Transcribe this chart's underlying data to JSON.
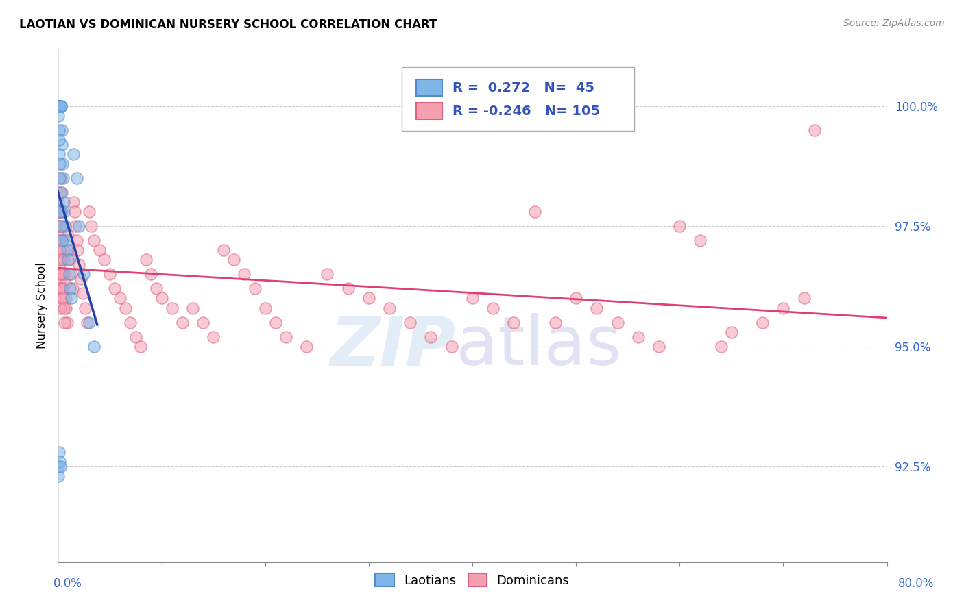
{
  "title": "LAOTIAN VS DOMINICAN NURSERY SCHOOL CORRELATION CHART",
  "source": "Source: ZipAtlas.com",
  "ylabel": "Nursery School",
  "xmin": 0.0,
  "xmax": 80.0,
  "ymin": 90.5,
  "ymax": 101.2,
  "ytick_positions": [
    92.5,
    95.0,
    97.5,
    100.0
  ],
  "ytick_labels": [
    "92.5%",
    "95.0%",
    "97.5%",
    "100.0%"
  ],
  "blue_R": 0.272,
  "blue_N": 45,
  "pink_R": -0.246,
  "pink_N": 105,
  "blue_color": "#7EB6E8",
  "pink_color": "#F4A0B0",
  "blue_edge_color": "#5588CC",
  "pink_edge_color": "#E06080",
  "blue_line_color": "#2244AA",
  "pink_line_color": "#E04070",
  "blue_scatter_x": [
    0.05,
    0.08,
    0.1,
    0.12,
    0.15,
    0.18,
    0.2,
    0.22,
    0.25,
    0.28,
    0.3,
    0.35,
    0.4,
    0.45,
    0.5,
    0.55,
    0.6,
    0.7,
    0.8,
    0.9,
    1.0,
    1.1,
    1.2,
    1.3,
    1.5,
    1.8,
    2.0,
    2.5,
    3.0,
    3.5,
    0.06,
    0.09,
    0.11,
    0.14,
    0.17,
    0.19,
    0.23,
    0.27,
    0.32,
    0.38,
    0.05,
    0.07,
    0.13,
    0.16,
    0.21
  ],
  "blue_scatter_y": [
    100.0,
    100.0,
    100.0,
    100.0,
    100.0,
    100.0,
    100.0,
    100.0,
    100.0,
    100.0,
    100.0,
    99.5,
    99.2,
    98.8,
    98.5,
    98.0,
    97.8,
    97.5,
    97.2,
    97.0,
    96.8,
    96.5,
    96.2,
    96.0,
    99.0,
    98.5,
    97.5,
    96.5,
    95.5,
    95.0,
    99.8,
    99.5,
    99.3,
    99.0,
    98.8,
    98.5,
    98.2,
    97.8,
    97.5,
    97.2,
    92.5,
    92.3,
    92.8,
    92.6,
    92.5
  ],
  "pink_scatter_x": [
    0.05,
    0.08,
    0.1,
    0.12,
    0.15,
    0.18,
    0.2,
    0.22,
    0.25,
    0.28,
    0.3,
    0.35,
    0.4,
    0.45,
    0.5,
    0.55,
    0.6,
    0.65,
    0.7,
    0.75,
    0.8,
    0.9,
    1.0,
    1.1,
    1.2,
    1.3,
    1.4,
    1.5,
    1.6,
    1.7,
    1.8,
    1.9,
    2.0,
    2.2,
    2.4,
    2.6,
    2.8,
    3.0,
    3.2,
    3.5,
    4.0,
    4.5,
    5.0,
    5.5,
    6.0,
    6.5,
    7.0,
    7.5,
    8.0,
    8.5,
    9.0,
    9.5,
    10.0,
    11.0,
    12.0,
    13.0,
    14.0,
    15.0,
    16.0,
    17.0,
    18.0,
    19.0,
    20.0,
    21.0,
    22.0,
    24.0,
    26.0,
    28.0,
    30.0,
    32.0,
    34.0,
    36.0,
    38.0,
    40.0,
    42.0,
    44.0,
    46.0,
    48.0,
    50.0,
    52.0,
    54.0,
    56.0,
    58.0,
    60.0,
    62.0,
    64.0,
    65.0,
    68.0,
    70.0,
    72.0,
    0.06,
    0.09,
    0.11,
    0.14,
    0.16,
    0.19,
    0.23,
    0.27,
    0.32,
    0.42,
    0.48,
    0.53,
    0.58,
    0.63,
    73.0
  ],
  "pink_scatter_y": [
    98.2,
    97.8,
    97.5,
    97.3,
    97.0,
    96.8,
    96.6,
    96.4,
    96.2,
    96.0,
    98.5,
    98.2,
    97.8,
    97.5,
    97.2,
    97.0,
    96.8,
    96.5,
    96.3,
    96.0,
    95.8,
    95.5,
    97.3,
    97.0,
    96.8,
    96.5,
    96.2,
    98.0,
    97.8,
    97.5,
    97.2,
    97.0,
    96.7,
    96.4,
    96.1,
    95.8,
    95.5,
    97.8,
    97.5,
    97.2,
    97.0,
    96.8,
    96.5,
    96.2,
    96.0,
    95.8,
    95.5,
    95.2,
    95.0,
    96.8,
    96.5,
    96.2,
    96.0,
    95.8,
    95.5,
    95.8,
    95.5,
    95.2,
    97.0,
    96.8,
    96.5,
    96.2,
    95.8,
    95.5,
    95.2,
    95.0,
    96.5,
    96.2,
    96.0,
    95.8,
    95.5,
    95.2,
    95.0,
    96.0,
    95.8,
    95.5,
    97.8,
    95.5,
    96.0,
    95.8,
    95.5,
    95.2,
    95.0,
    97.5,
    97.2,
    95.0,
    95.3,
    95.5,
    95.8,
    96.0,
    98.0,
    97.8,
    97.5,
    97.2,
    97.0,
    96.5,
    96.2,
    95.8,
    96.8,
    96.5,
    96.2,
    96.0,
    95.8,
    95.5,
    99.5
  ]
}
